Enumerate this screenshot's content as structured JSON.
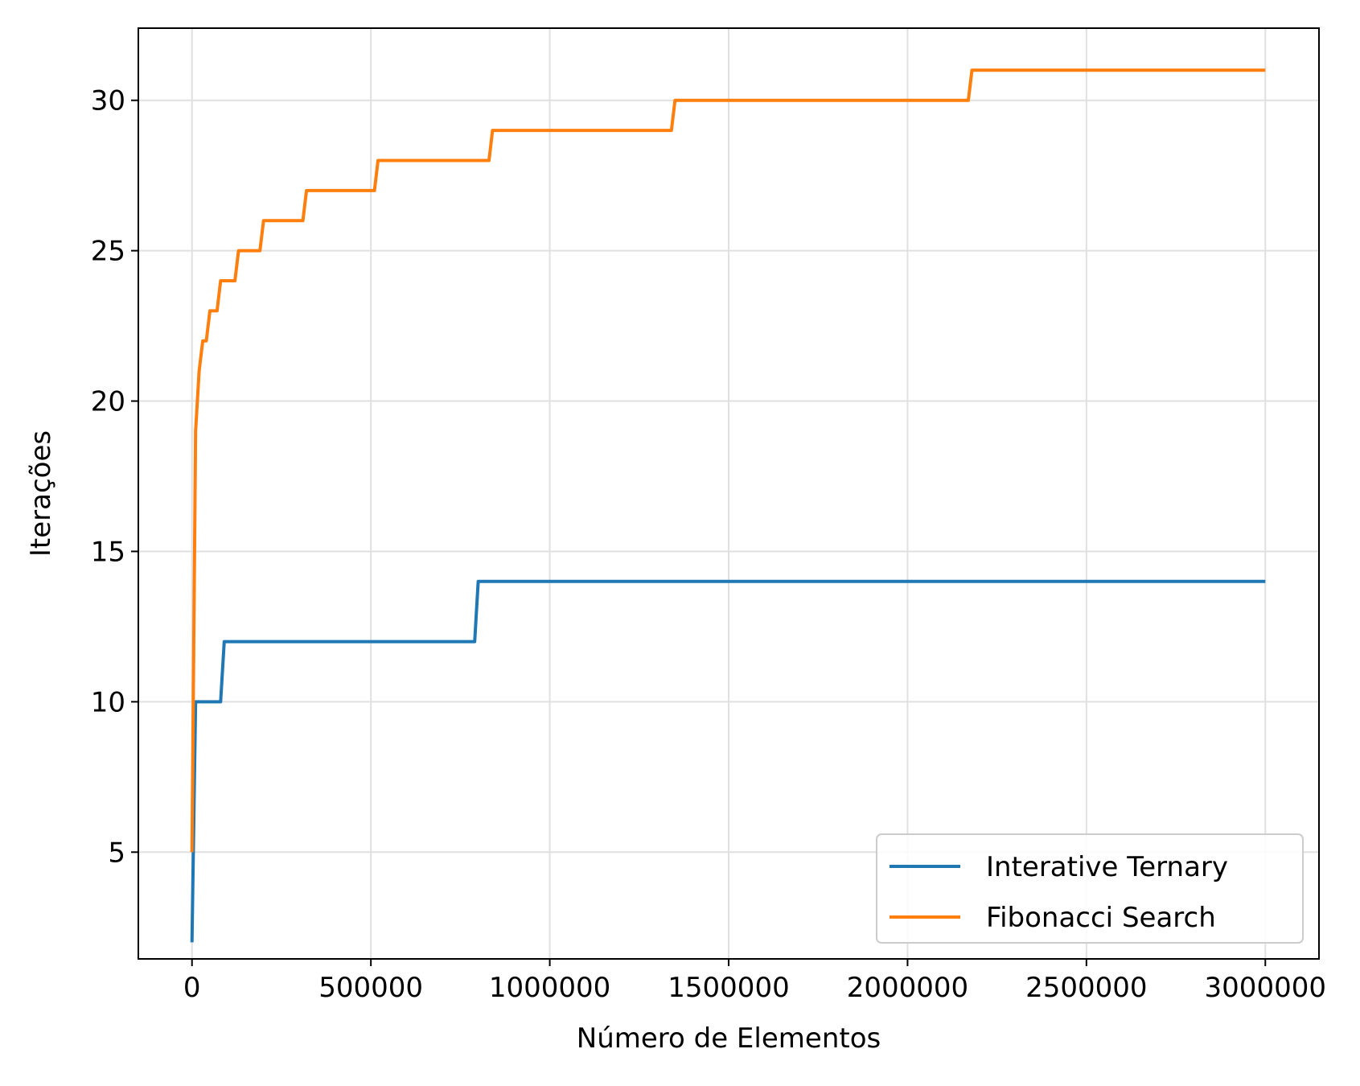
{
  "chart_data": {
    "type": "line",
    "title": "",
    "xlabel": "Número de Elementos",
    "ylabel": "Iterações",
    "xlim": [
      -150000,
      3150000
    ],
    "ylim": [
      1.45,
      32.4
    ],
    "xticks": [
      0,
      500000,
      1000000,
      1500000,
      2000000,
      2500000,
      3000000
    ],
    "xtick_labels": [
      "0",
      "500000",
      "1000000",
      "1500000",
      "2000000",
      "2500000",
      "3000000"
    ],
    "yticks": [
      5,
      10,
      15,
      20,
      25,
      30
    ],
    "ytick_labels": [
      "5",
      "10",
      "15",
      "20",
      "25",
      "30"
    ],
    "grid": true,
    "legend_position": "lower-right",
    "series": [
      {
        "name": "Interative Ternary",
        "color": "#1f77b4",
        "x": [
          0,
          10000,
          80000,
          90000,
          790000,
          800000,
          3000000
        ],
        "y": [
          2,
          10,
          10,
          12,
          12,
          14,
          14
        ]
      },
      {
        "name": "Fibonacci Search",
        "color": "#ff7f0e",
        "x": [
          0,
          10000,
          20000,
          30000,
          40000,
          50000,
          70000,
          80000,
          120000,
          130000,
          190000,
          200000,
          310000,
          320000,
          510000,
          520000,
          830000,
          840000,
          1340000,
          1350000,
          2170000,
          2180000,
          3000000
        ],
        "y": [
          5,
          19,
          21,
          22,
          22,
          23,
          23,
          24,
          24,
          25,
          25,
          26,
          26,
          27,
          27,
          28,
          28,
          29,
          29,
          30,
          30,
          31,
          31
        ]
      }
    ]
  }
}
